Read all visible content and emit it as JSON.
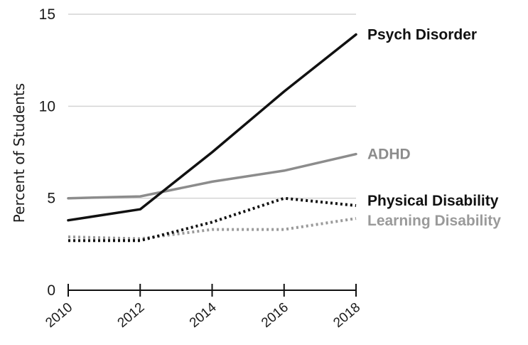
{
  "chart_data": {
    "type": "line",
    "title": "",
    "xlabel": "",
    "ylabel": "Percent of Students",
    "x": [
      2010,
      2012,
      2014,
      2016,
      2018
    ],
    "x_tick_labels": [
      "2010",
      "2012",
      "2014",
      "2016",
      "2018"
    ],
    "xlim": [
      2010,
      2018
    ],
    "ylim": [
      0,
      15
    ],
    "y_ticks": [
      0,
      5,
      10,
      15
    ],
    "y_tick_labels": [
      "0",
      "5",
      "10",
      "15"
    ],
    "grid": "horizontal",
    "legend": "direct labels at right end of each line",
    "series": [
      {
        "name": "Psych Disorder",
        "values": [
          3.8,
          4.4,
          7.5,
          10.8,
          13.9
        ],
        "color": "#111111",
        "style": "solid"
      },
      {
        "name": "ADHD",
        "values": [
          5.0,
          5.1,
          5.9,
          6.5,
          7.4
        ],
        "color": "#8c8c8c",
        "style": "solid"
      },
      {
        "name": "Physical Disability",
        "values": [
          2.7,
          2.7,
          3.7,
          5.0,
          4.6
        ],
        "color": "#111111",
        "style": "dotted"
      },
      {
        "name": "Learning Disability",
        "values": [
          2.9,
          2.8,
          3.3,
          3.3,
          3.9
        ],
        "color": "#9a9a9a",
        "style": "dotted"
      }
    ]
  }
}
